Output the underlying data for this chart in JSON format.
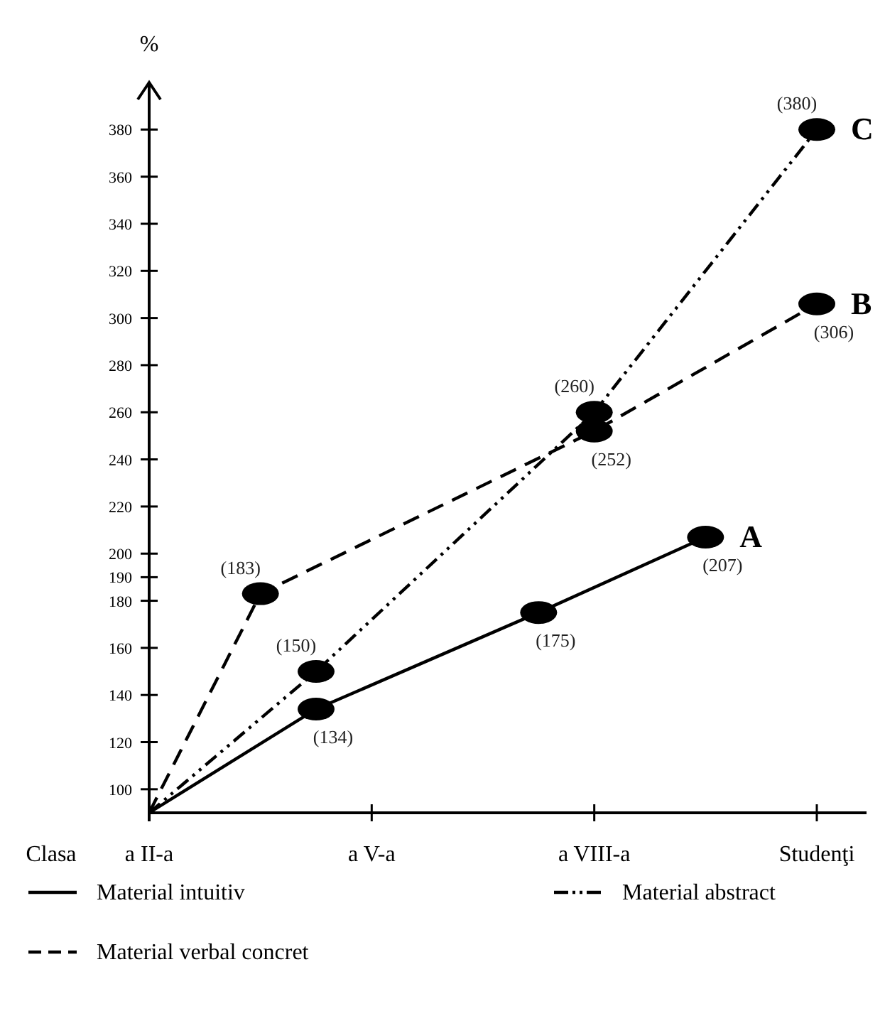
{
  "chart_data": {
    "type": "line",
    "ylabel": "%",
    "xlabel": "Clasa",
    "categories": [
      "a II-a",
      null,
      null,
      null,
      "a V-a",
      null,
      null,
      null,
      "a VIII-a",
      null,
      null,
      null,
      "Studenţi"
    ],
    "ylim": [
      90,
      400
    ],
    "yticks": [
      100,
      120,
      140,
      160,
      180,
      190,
      200,
      220,
      240,
      260,
      280,
      300,
      320,
      340,
      360,
      380
    ],
    "grid": false,
    "legend": "bottom",
    "marker": "circle",
    "series": [
      {
        "name": "Material intuitiv",
        "color": "#000000",
        "line_style": "solid",
        "values": [
          90,
          null,
          null,
          134,
          null,
          null,
          null,
          175,
          null,
          null,
          207,
          null,
          null
        ],
        "value_labels": [
          null,
          null,
          null,
          "(134)",
          null,
          null,
          null,
          "(175)",
          null,
          null,
          "(207)",
          null,
          null
        ]
      },
      {
        "name": "Material abstract",
        "color": "#000000",
        "line_style": "dashdotdot",
        "values": [
          90,
          null,
          null,
          150,
          null,
          null,
          null,
          null,
          260,
          null,
          null,
          null,
          380
        ],
        "value_labels": [
          null,
          null,
          null,
          "(150)",
          null,
          null,
          null,
          null,
          "(260)",
          null,
          null,
          null,
          "(380)"
        ]
      },
      {
        "name": "Material verbal concret",
        "color": "#000000",
        "line_style": "dashed",
        "values": [
          90,
          null,
          183,
          null,
          null,
          null,
          null,
          null,
          252,
          null,
          null,
          null,
          306
        ],
        "value_labels": [
          null,
          null,
          "(183)",
          null,
          null,
          null,
          null,
          null,
          "(252)",
          null,
          null,
          null,
          "(306)"
        ]
      }
    ],
    "annotations": [
      "A",
      "C",
      "B"
    ]
  }
}
